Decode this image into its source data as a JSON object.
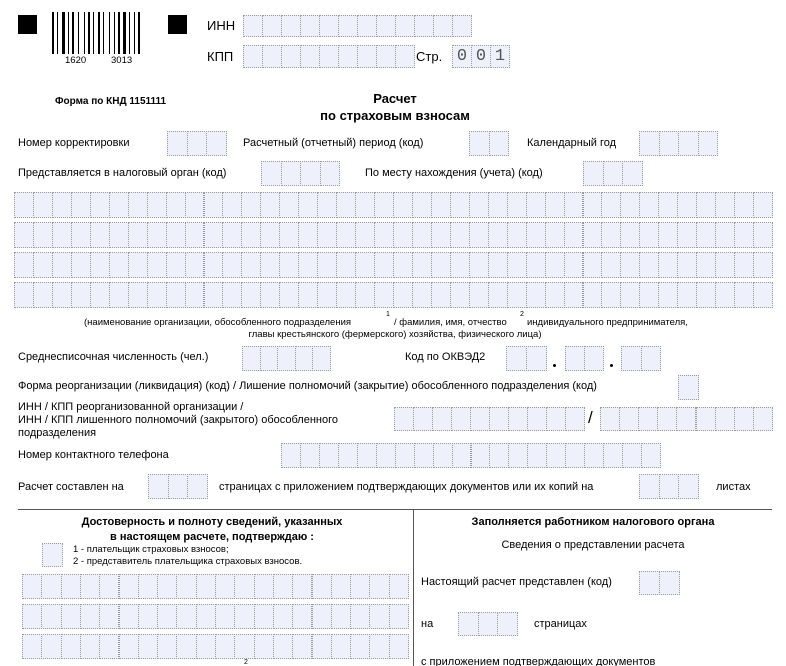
{
  "barcode": {
    "left": "1620",
    "right": "3013"
  },
  "header": {
    "inn_label": "ИНН",
    "kpp_label": "КПП",
    "page_label": "Стр.",
    "page_digits": [
      "0",
      "0",
      "1"
    ],
    "form_code": "Форма по КНД 1151111",
    "title": "Расчет",
    "subtitle": "по страховым взносам"
  },
  "fields": {
    "correction": "Номер корректировки",
    "period": "Расчетный (отчетный) период (код)",
    "year": "Календарный год",
    "tax_office": "Представляется в налоговый орган (код)",
    "location": "По месту нахождения (учета) (код)",
    "caption_1": "(наименование организации, обособленного подразделения",
    "caption_sup1": "1",
    "caption_2": "/ фамилия, имя, отчество",
    "caption_sup2": "2",
    "caption_3": "индивидуального предпринимателя,",
    "caption_4": "главы крестьянского (фермерского) хозяйства, физического лица)",
    "headcount": "Среднесписочная численность (чел.)",
    "okved": "Код по ОКВЭД2",
    "reorg": "Форма реорганизации (ликвидация) (код) / Лишение полномочий (закрытие) обособленного подразделения (код)",
    "reorg_inn_1": "ИНН / КПП реорганизованной организации /",
    "reorg_inn_2": "ИНН / КПП лишенного полномочий (закрытого) обособленного",
    "reorg_inn_3": "подразделения",
    "slash": "/",
    "phone": "Номер контактного телефона",
    "pages_pre": "Расчет составлен на",
    "pages_mid": "страницах с приложением подтверждающих документов или их копий на",
    "pages_post": "листах"
  },
  "left_block": {
    "title_1": "Достоверность и полноту сведений, указанных",
    "title_2": "в настоящем расчете, подтверждаю :",
    "option_1": "1 - плательщик страховых взносов;",
    "option_2": "2 - представитель плательщика страховых взносов.",
    "sup": "2"
  },
  "right_block": {
    "title": "Заполняется работником налогового органа",
    "subtitle": "Сведения о представлении расчета",
    "submitted": "Настоящий расчет представлен  (код)",
    "on": "на",
    "pages": "страницах",
    "attachments": "с приложением подтверждающих документов"
  }
}
